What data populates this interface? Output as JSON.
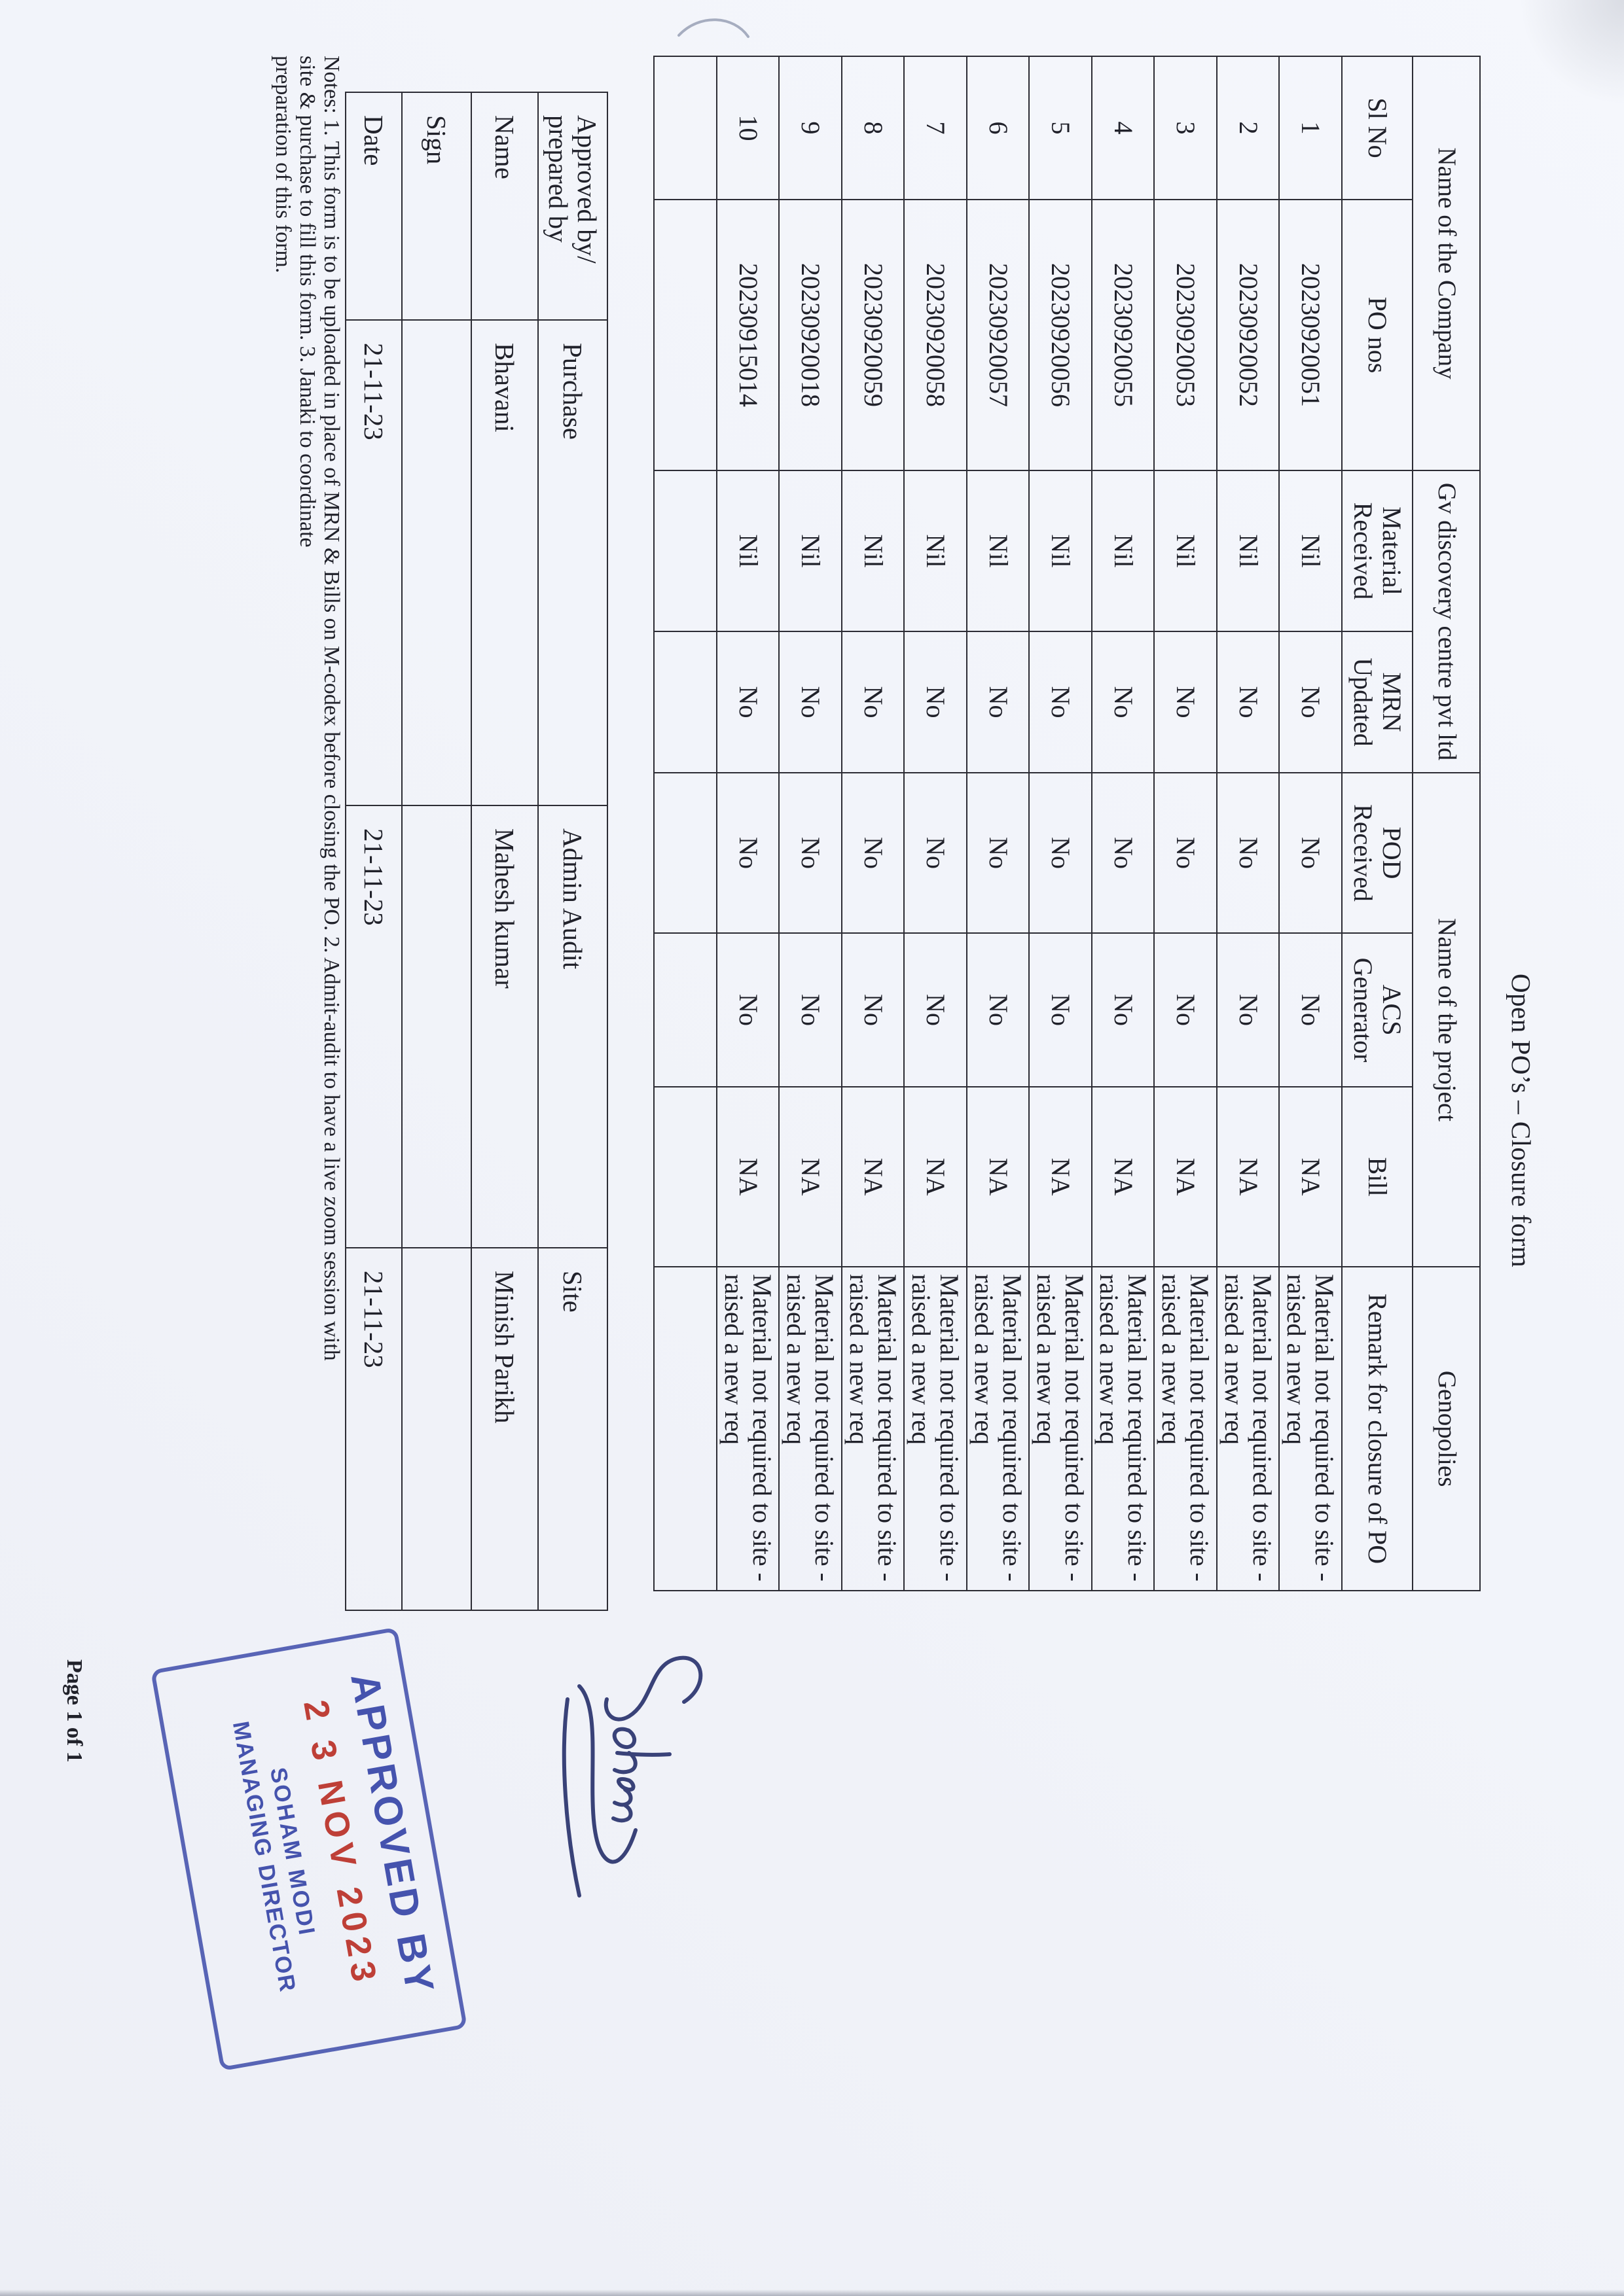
{
  "title": "Open PO’s – Closure form",
  "colors": {
    "paper": "#f2f4f9",
    "ink": "#20212a",
    "table_line": "#2c2c34",
    "stamp_blue": "#2d3ca3",
    "stamp_red": "#ba3026"
  },
  "main_table": {
    "company_header": [
      {
        "label": "Name of the Company",
        "span": 2
      },
      {
        "label": "Gv discovery centre pvt ltd",
        "span": 2
      },
      {
        "label": "Name of the project",
        "span": 3
      },
      {
        "label": "Genopolies",
        "span": 1
      }
    ],
    "columns": [
      "Sl No",
      "PO nos",
      "Material\nReceived",
      "MRN\nUpdated",
      "POD\nReceived",
      "ACS\nGenerator",
      "Bill",
      "Remark for closure of PO"
    ],
    "rows": [
      [
        "1",
        "20230920051",
        "Nil",
        "No",
        "No",
        "No",
        "NA",
        "Material not required to site -raised a new req"
      ],
      [
        "2",
        "20230920052",
        "Nil",
        "No",
        "No",
        "No",
        "NA",
        "Material not required to site -raised a new req"
      ],
      [
        "3",
        "20230920053",
        "Nil",
        "No",
        "No",
        "No",
        "NA",
        "Material not required to site -raised a new req"
      ],
      [
        "4",
        "20230920055",
        "Nil",
        "No",
        "No",
        "No",
        "NA",
        "Material not required to site -raised a new req"
      ],
      [
        "5",
        "20230920056",
        "Nil",
        "No",
        "No",
        "No",
        "NA",
        "Material not required to site -raised a new req"
      ],
      [
        "6",
        "20230920057",
        "Nil",
        "No",
        "No",
        "No",
        "NA",
        "Material not required to site -raised a new req"
      ],
      [
        "7",
        "20230920058",
        "Nil",
        "No",
        "No",
        "No",
        "NA",
        "Material not required to site -raised a new req"
      ],
      [
        "8",
        "20230920059",
        "Nil",
        "No",
        "No",
        "No",
        "NA",
        "Material not required to site -raised a new req"
      ],
      [
        "9",
        "20230920018",
        "Nil",
        "No",
        "No",
        "No",
        "NA",
        "Material not required to site -raised a new req"
      ],
      [
        "10",
        "20230915014",
        "Nil",
        "No",
        "No",
        "No",
        "NA",
        "Material not required to site -raised a new req"
      ],
      [
        "",
        "",
        "",
        "",
        "",
        "",
        "",
        ""
      ]
    ]
  },
  "signature_table": {
    "header": [
      "Approved by/\nprepared by",
      "Purchase",
      "Admin Audit",
      "Site"
    ],
    "rows": [
      [
        "Name",
        "Bhavani",
        "Mahesh kumar",
        "Minish Parikh"
      ],
      [
        "Sign",
        "",
        "",
        ""
      ],
      [
        "Date",
        "21-11-23",
        "21-11-23",
        "21-11-23"
      ]
    ]
  },
  "notes": "Notes: 1. This form is to be uploaded in place of MRN & Bills on M-codex before closing the PO. 2. Admit-audit to have a live zoom session with\nsite & purchase to fill this form. 3. Janaki to coordinate\npreparation of this form.",
  "page_footer": "Page 1 of 1",
  "handwritten_signature": "Soham",
  "stamp": {
    "line1": "APPROVED BY",
    "date": "2 3 NOV 2023",
    "name": "SOHAM MODI",
    "title": "MANAGING DIRECTOR"
  }
}
